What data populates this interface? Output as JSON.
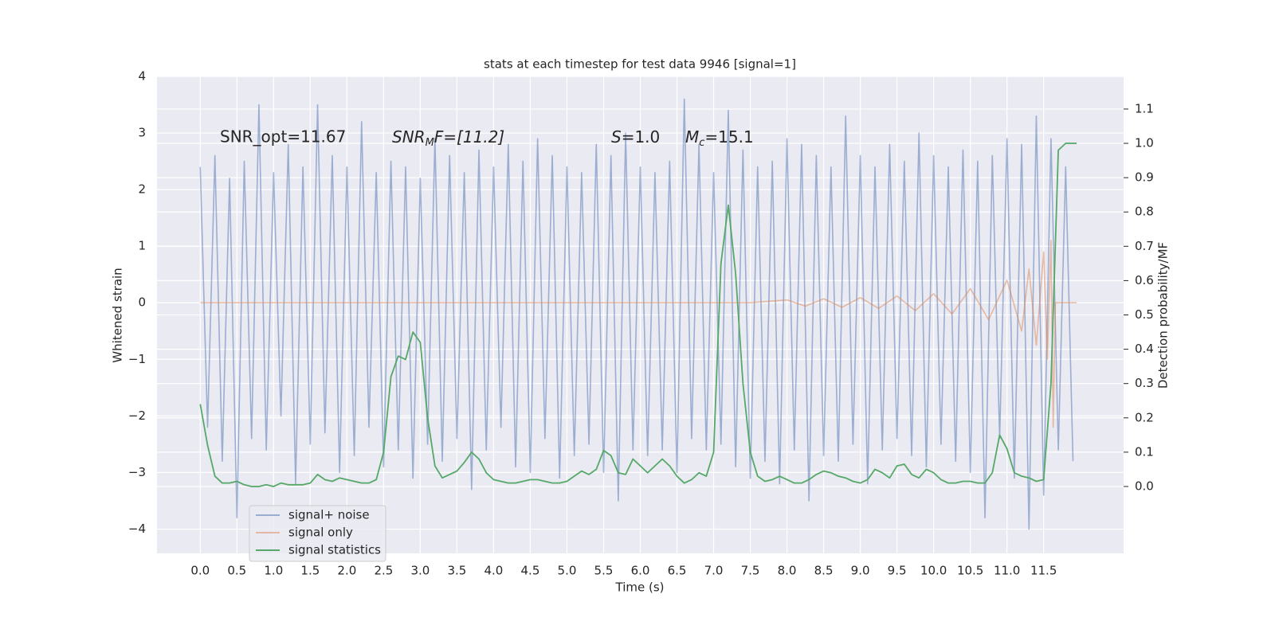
{
  "chart_data": {
    "type": "line",
    "title": "stats at each timestep for test data 9946 [signal=1]",
    "xlabel": "Time (s)",
    "ylabel": "Whitened strain",
    "y2label": "Detection probability/MF",
    "xlim": [
      -0.59,
      12.59
    ],
    "ylim": [
      -4.43,
      4.0
    ],
    "y2lim": [
      -0.195,
      1.195
    ],
    "xticks": [
      {
        "value": 0,
        "label": "0.0"
      },
      0.5,
      {
        "value": 1,
        "label": "1.0"
      },
      1.5,
      {
        "value": 2,
        "label": "2.0"
      },
      2.5,
      {
        "value": 3,
        "label": "3.0"
      },
      3.5,
      {
        "value": 4,
        "label": "4.0"
      },
      4.5,
      {
        "value": 5,
        "label": "5.0"
      },
      5.5,
      {
        "value": 6,
        "label": "6.0"
      },
      6.5,
      {
        "value": 7,
        "label": "7.0"
      },
      7.5,
      {
        "value": 8,
        "label": "8.0"
      },
      8.5,
      {
        "value": 9,
        "label": "9.0"
      },
      9.5,
      {
        "value": 10,
        "label": "10.0"
      },
      10.5,
      {
        "value": 11,
        "label": "11.0"
      },
      11.5
    ],
    "yticks": [
      {
        "value": -4,
        "label": "−4"
      },
      {
        "value": -3,
        "label": "−3"
      },
      {
        "value": -2,
        "label": "−2"
      },
      {
        "value": -1,
        "label": "−1"
      },
      0,
      1,
      2,
      3,
      4
    ],
    "y2ticks": [
      {
        "value": 0,
        "label": "0.0"
      },
      0.1,
      0.2,
      0.3,
      0.4,
      0.5,
      0.6,
      0.7,
      0.8,
      0.9,
      {
        "value": 1,
        "label": "1.0"
      },
      1.1
    ],
    "grid": true,
    "legend_loc": "lower left",
    "annotations": [
      {
        "text": "SNR_opt=11.67"
      },
      {
        "text": "SNR",
        "sub": "M",
        "tail": "F=[11.2]"
      },
      {
        "text": "S",
        "tail": "=1.0"
      },
      {
        "text": "M",
        "sub": "c",
        "tail": "=15.1"
      }
    ],
    "series": [
      {
        "name": "signal+ noise",
        "color": "#4c72b0",
        "opacity": 0.5,
        "x": [
          0.0,
          0.1,
          0.2,
          0.3,
          0.4,
          0.5,
          0.6,
          0.7,
          0.8,
          0.9,
          1.0,
          1.1,
          1.2,
          1.3,
          1.4,
          1.5,
          1.6,
          1.7,
          1.8,
          1.9,
          2.0,
          2.1,
          2.2,
          2.3,
          2.4,
          2.5,
          2.6,
          2.7,
          2.8,
          2.9,
          3.0,
          3.1,
          3.2,
          3.3,
          3.4,
          3.5,
          3.6,
          3.7,
          3.8,
          3.9,
          4.0,
          4.1,
          4.2,
          4.3,
          4.4,
          4.5,
          4.6,
          4.7,
          4.8,
          4.9,
          5.0,
          5.1,
          5.2,
          5.3,
          5.4,
          5.5,
          5.6,
          5.7,
          5.8,
          5.9,
          6.0,
          6.1,
          6.2,
          6.3,
          6.4,
          6.5,
          6.6,
          6.7,
          6.8,
          6.9,
          7.0,
          7.1,
          7.2,
          7.3,
          7.4,
          7.5,
          7.6,
          7.7,
          7.8,
          7.9,
          8.0,
          8.1,
          8.2,
          8.3,
          8.4,
          8.5,
          8.6,
          8.7,
          8.8,
          8.9,
          9.0,
          9.1,
          9.2,
          9.3,
          9.4,
          9.5,
          9.6,
          9.7,
          9.8,
          9.9,
          10.0,
          10.1,
          10.2,
          10.3,
          10.4,
          10.5,
          10.6,
          10.7,
          10.8,
          10.9,
          11.0,
          11.1,
          11.2,
          11.3,
          11.4,
          11.5,
          11.6,
          11.7,
          11.8,
          11.9
        ],
        "values": [
          2.4,
          -2.2,
          2.6,
          -2.8,
          2.2,
          -3.8,
          2.5,
          -2.4,
          3.5,
          -2.6,
          2.3,
          -2.0,
          2.8,
          -3.2,
          2.4,
          -2.5,
          3.5,
          -2.3,
          2.6,
          -3.0,
          2.4,
          -2.7,
          3.2,
          -2.2,
          2.3,
          -2.9,
          2.5,
          -2.6,
          2.4,
          -3.1,
          2.2,
          -2.5,
          2.9,
          -2.8,
          2.6,
          -2.4,
          2.3,
          -3.3,
          2.7,
          -2.6,
          2.4,
          -2.2,
          2.8,
          -2.9,
          2.5,
          -3.0,
          2.9,
          -2.4,
          2.6,
          -3.1,
          2.4,
          -2.7,
          2.3,
          -2.5,
          2.8,
          -3.0,
          2.6,
          -3.5,
          3.0,
          -2.6,
          2.4,
          -2.7,
          2.3,
          -2.6,
          2.5,
          -3.0,
          3.6,
          -2.4,
          2.8,
          -2.6,
          2.3,
          -2.5,
          3.4,
          -2.9,
          2.7,
          -3.1,
          2.4,
          -2.8,
          2.5,
          -3.2,
          2.9,
          -2.6,
          2.8,
          -3.5,
          2.6,
          -2.7,
          2.4,
          -2.8,
          3.3,
          -2.5,
          2.6,
          -3.2,
          2.4,
          -2.6,
          2.8,
          -2.4,
          2.5,
          -2.7,
          3.0,
          -2.9,
          2.6,
          -2.5,
          2.4,
          -2.8,
          2.7,
          -3.0,
          2.5,
          -3.8,
          2.6,
          -2.4,
          2.9,
          -3.1,
          2.8,
          -4.0,
          3.3,
          -3.4,
          2.9,
          -2.6,
          2.4,
          -2.8
        ]
      },
      {
        "name": "signal only",
        "color": "#dd8452",
        "opacity": 0.5,
        "x": [
          0,
          7.5,
          8.0,
          8.25,
          8.5,
          8.75,
          9.0,
          9.25,
          9.5,
          9.75,
          10.0,
          10.25,
          10.5,
          10.75,
          11.0,
          11.2,
          11.3,
          11.4,
          11.5,
          11.55,
          11.6,
          11.63,
          11.66,
          11.95
        ],
        "values": [
          0,
          0,
          0.05,
          -0.06,
          0.07,
          -0.08,
          0.09,
          -0.1,
          0.12,
          -0.14,
          0.16,
          -0.2,
          0.25,
          -0.3,
          0.4,
          -0.5,
          0.6,
          -0.75,
          0.9,
          -1.0,
          1.1,
          -2.2,
          0,
          0
        ]
      },
      {
        "name": "signal statistics",
        "color": "#55a868",
        "axis": "y2",
        "x": [
          0.0,
          0.1,
          0.2,
          0.3,
          0.4,
          0.5,
          0.6,
          0.7,
          0.8,
          0.9,
          1.0,
          1.1,
          1.2,
          1.3,
          1.4,
          1.5,
          1.6,
          1.7,
          1.8,
          1.9,
          2.0,
          2.1,
          2.2,
          2.3,
          2.4,
          2.5,
          2.6,
          2.7,
          2.8,
          2.9,
          3.0,
          3.1,
          3.2,
          3.3,
          3.4,
          3.5,
          3.6,
          3.7,
          3.8,
          3.9,
          4.0,
          4.1,
          4.2,
          4.3,
          4.4,
          4.5,
          4.6,
          4.7,
          4.8,
          4.9,
          5.0,
          5.1,
          5.2,
          5.3,
          5.4,
          5.5,
          5.6,
          5.7,
          5.8,
          5.9,
          6.0,
          6.1,
          6.2,
          6.3,
          6.4,
          6.5,
          6.6,
          6.7,
          6.8,
          6.9,
          7.0,
          7.1,
          7.2,
          7.3,
          7.4,
          7.5,
          7.6,
          7.7,
          7.8,
          7.9,
          8.0,
          8.1,
          8.2,
          8.3,
          8.4,
          8.5,
          8.6,
          8.7,
          8.8,
          8.9,
          9.0,
          9.1,
          9.2,
          9.3,
          9.4,
          9.5,
          9.6,
          9.7,
          9.8,
          9.9,
          10.0,
          10.1,
          10.2,
          10.3,
          10.4,
          10.5,
          10.6,
          10.7,
          10.8,
          10.9,
          11.0,
          11.1,
          11.2,
          11.3,
          11.4,
          11.5,
          11.6,
          11.7,
          11.8,
          11.9,
          11.95
        ],
        "values": [
          0.24,
          0.12,
          0.03,
          0.01,
          0.01,
          0.015,
          0.005,
          0,
          0,
          0.005,
          0,
          0.01,
          0.005,
          0.005,
          0.005,
          0.01,
          0.035,
          0.02,
          0.015,
          0.025,
          0.02,
          0.015,
          0.01,
          0.01,
          0.02,
          0.1,
          0.32,
          0.38,
          0.37,
          0.45,
          0.42,
          0.2,
          0.06,
          0.025,
          0.035,
          0.045,
          0.07,
          0.1,
          0.08,
          0.04,
          0.02,
          0.015,
          0.01,
          0.01,
          0.015,
          0.02,
          0.02,
          0.015,
          0.01,
          0.01,
          0.015,
          0.03,
          0.045,
          0.035,
          0.05,
          0.105,
          0.09,
          0.04,
          0.035,
          0.08,
          0.06,
          0.04,
          0.06,
          0.08,
          0.06,
          0.03,
          0.01,
          0.02,
          0.04,
          0.03,
          0.1,
          0.65,
          0.82,
          0.62,
          0.3,
          0.1,
          0.03,
          0.015,
          0.02,
          0.03,
          0.02,
          0.01,
          0.01,
          0.02,
          0.035,
          0.045,
          0.04,
          0.03,
          0.025,
          0.015,
          0.01,
          0.02,
          0.05,
          0.04,
          0.025,
          0.06,
          0.065,
          0.035,
          0.025,
          0.05,
          0.04,
          0.02,
          0.01,
          0.01,
          0.015,
          0.015,
          0.01,
          0.01,
          0.04,
          0.15,
          0.11,
          0.04,
          0.03,
          0.025,
          0.015,
          0.02,
          0.3,
          0.98,
          1.0,
          1.0,
          1.0
        ]
      }
    ]
  }
}
